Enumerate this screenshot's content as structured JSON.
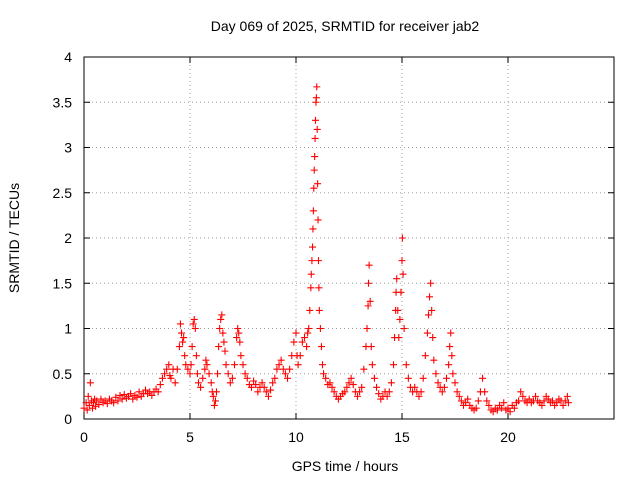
{
  "chart_data": {
    "type": "scatter",
    "title": "Day 069 of 2025, SRMTID for receiver jab2",
    "xlabel": "GPS time / hours",
    "ylabel": "SRMTID / TECUs",
    "xlim": [
      0,
      25
    ],
    "ylim": [
      0,
      4
    ],
    "xticks": [
      0,
      5,
      10,
      15,
      20
    ],
    "yticks": [
      0,
      0.5,
      1,
      1.5,
      2,
      2.5,
      3,
      3.5,
      4
    ],
    "xtick_labels": [
      "0",
      "5",
      "10",
      "15",
      "20"
    ],
    "ytick_labels": [
      "0",
      "0.5",
      "1",
      "1.5",
      "2",
      "2.5",
      "3",
      "3.5",
      "4"
    ],
    "grid": true,
    "marker": "+",
    "color": "#ff0000",
    "series": [
      {
        "name": "SRMTID",
        "points": [
          [
            0.0,
            0.12
          ],
          [
            0.1,
            0.18
          ],
          [
            0.15,
            0.1
          ],
          [
            0.2,
            0.25
          ],
          [
            0.25,
            0.15
          ],
          [
            0.3,
            0.4
          ],
          [
            0.35,
            0.2
          ],
          [
            0.4,
            0.12
          ],
          [
            0.45,
            0.18
          ],
          [
            0.5,
            0.22
          ],
          [
            0.55,
            0.14
          ],
          [
            0.6,
            0.2
          ],
          [
            0.7,
            0.16
          ],
          [
            0.8,
            0.22
          ],
          [
            0.9,
            0.18
          ],
          [
            1.0,
            0.2
          ],
          [
            1.1,
            0.17
          ],
          [
            1.2,
            0.22
          ],
          [
            1.3,
            0.2
          ],
          [
            1.4,
            0.18
          ],
          [
            1.5,
            0.24
          ],
          [
            1.6,
            0.2
          ],
          [
            1.7,
            0.26
          ],
          [
            1.8,
            0.22
          ],
          [
            1.9,
            0.27
          ],
          [
            2.0,
            0.23
          ],
          [
            2.1,
            0.25
          ],
          [
            2.2,
            0.28
          ],
          [
            2.3,
            0.22
          ],
          [
            2.4,
            0.26
          ],
          [
            2.5,
            0.24
          ],
          [
            2.6,
            0.3
          ],
          [
            2.7,
            0.25
          ],
          [
            2.8,
            0.28
          ],
          [
            2.9,
            0.32
          ],
          [
            3.0,
            0.28
          ],
          [
            3.1,
            0.3
          ],
          [
            3.2,
            0.26
          ],
          [
            3.3,
            0.3
          ],
          [
            3.4,
            0.33
          ],
          [
            3.5,
            0.3
          ],
          [
            3.6,
            0.38
          ],
          [
            3.7,
            0.45
          ],
          [
            3.8,
            0.5
          ],
          [
            3.9,
            0.55
          ],
          [
            4.0,
            0.6
          ],
          [
            4.05,
            0.48
          ],
          [
            4.1,
            0.45
          ],
          [
            4.2,
            0.55
          ],
          [
            4.3,
            0.4
          ],
          [
            4.4,
            0.55
          ],
          [
            4.5,
            0.8
          ],
          [
            4.55,
            1.05
          ],
          [
            4.6,
            0.95
          ],
          [
            4.65,
            0.85
          ],
          [
            4.7,
            0.9
          ],
          [
            4.75,
            0.7
          ],
          [
            4.8,
            0.6
          ],
          [
            4.9,
            0.55
          ],
          [
            5.0,
            0.5
          ],
          [
            5.05,
            0.6
          ],
          [
            5.1,
            0.8
          ],
          [
            5.15,
            1.05
          ],
          [
            5.2,
            1.1
          ],
          [
            5.25,
            1.0
          ],
          [
            5.3,
            0.7
          ],
          [
            5.35,
            0.5
          ],
          [
            5.4,
            0.4
          ],
          [
            5.5,
            0.35
          ],
          [
            5.6,
            0.45
          ],
          [
            5.7,
            0.55
          ],
          [
            5.75,
            0.65
          ],
          [
            5.8,
            0.6
          ],
          [
            5.9,
            0.5
          ],
          [
            6.0,
            0.4
          ],
          [
            6.05,
            0.3
          ],
          [
            6.1,
            0.25
          ],
          [
            6.15,
            0.15
          ],
          [
            6.2,
            0.2
          ],
          [
            6.25,
            0.3
          ],
          [
            6.3,
            0.5
          ],
          [
            6.35,
            0.8
          ],
          [
            6.4,
            1.0
          ],
          [
            6.45,
            1.1
          ],
          [
            6.5,
            1.15
          ],
          [
            6.55,
            0.95
          ],
          [
            6.6,
            0.85
          ],
          [
            6.65,
            0.75
          ],
          [
            6.7,
            0.6
          ],
          [
            6.8,
            0.5
          ],
          [
            6.9,
            0.4
          ],
          [
            7.0,
            0.45
          ],
          [
            7.1,
            0.6
          ],
          [
            7.2,
            0.9
          ],
          [
            7.25,
            1.0
          ],
          [
            7.3,
            0.95
          ],
          [
            7.35,
            0.85
          ],
          [
            7.4,
            0.7
          ],
          [
            7.5,
            0.6
          ],
          [
            7.6,
            0.5
          ],
          [
            7.7,
            0.45
          ],
          [
            7.8,
            0.38
          ],
          [
            7.9,
            0.35
          ],
          [
            8.0,
            0.42
          ],
          [
            8.1,
            0.38
          ],
          [
            8.2,
            0.3
          ],
          [
            8.3,
            0.35
          ],
          [
            8.4,
            0.4
          ],
          [
            8.5,
            0.35
          ],
          [
            8.6,
            0.3
          ],
          [
            8.7,
            0.25
          ],
          [
            8.8,
            0.32
          ],
          [
            8.9,
            0.4
          ],
          [
            9.0,
            0.45
          ],
          [
            9.1,
            0.55
          ],
          [
            9.2,
            0.6
          ],
          [
            9.3,
            0.65
          ],
          [
            9.4,
            0.55
          ],
          [
            9.5,
            0.5
          ],
          [
            9.6,
            0.45
          ],
          [
            9.7,
            0.55
          ],
          [
            9.8,
            0.7
          ],
          [
            9.9,
            0.85
          ],
          [
            10.0,
            0.95
          ],
          [
            10.05,
            0.7
          ],
          [
            10.1,
            0.6
          ],
          [
            10.2,
            0.7
          ],
          [
            10.3,
            0.85
          ],
          [
            10.4,
            0.9
          ],
          [
            10.5,
            0.8
          ],
          [
            10.55,
            0.95
          ],
          [
            10.6,
            1.0
          ],
          [
            10.65,
            1.2
          ],
          [
            10.7,
            1.45
          ],
          [
            10.72,
            1.6
          ],
          [
            10.75,
            1.75
          ],
          [
            10.78,
            1.9
          ],
          [
            10.8,
            2.1
          ],
          [
            10.82,
            2.3
          ],
          [
            10.84,
            2.55
          ],
          [
            10.86,
            2.75
          ],
          [
            10.88,
            2.9
          ],
          [
            10.9,
            3.1
          ],
          [
            10.92,
            3.3
          ],
          [
            10.94,
            3.5
          ],
          [
            10.96,
            3.55
          ],
          [
            10.98,
            3.67
          ],
          [
            11.0,
            3.2
          ],
          [
            11.02,
            2.6
          ],
          [
            11.04,
            2.2
          ],
          [
            11.06,
            1.75
          ],
          [
            11.08,
            1.45
          ],
          [
            11.1,
            1.2
          ],
          [
            11.15,
            1.0
          ],
          [
            11.2,
            0.8
          ],
          [
            11.25,
            0.6
          ],
          [
            11.3,
            0.5
          ],
          [
            11.4,
            0.45
          ],
          [
            11.5,
            0.38
          ],
          [
            11.6,
            0.4
          ],
          [
            11.7,
            0.35
          ],
          [
            11.8,
            0.3
          ],
          [
            11.9,
            0.25
          ],
          [
            12.0,
            0.22
          ],
          [
            12.1,
            0.25
          ],
          [
            12.2,
            0.28
          ],
          [
            12.3,
            0.3
          ],
          [
            12.4,
            0.35
          ],
          [
            12.5,
            0.4
          ],
          [
            12.6,
            0.45
          ],
          [
            12.7,
            0.38
          ],
          [
            12.8,
            0.3
          ],
          [
            12.9,
            0.25
          ],
          [
            13.0,
            0.3
          ],
          [
            13.1,
            0.35
          ],
          [
            13.2,
            0.55
          ],
          [
            13.3,
            0.8
          ],
          [
            13.35,
            1.0
          ],
          [
            13.4,
            1.25
          ],
          [
            13.42,
            1.5
          ],
          [
            13.45,
            1.7
          ],
          [
            13.5,
            1.3
          ],
          [
            13.55,
            0.8
          ],
          [
            13.6,
            0.6
          ],
          [
            13.7,
            0.45
          ],
          [
            13.8,
            0.35
          ],
          [
            13.9,
            0.28
          ],
          [
            14.0,
            0.22
          ],
          [
            14.1,
            0.25
          ],
          [
            14.2,
            0.3
          ],
          [
            14.3,
            0.25
          ],
          [
            14.4,
            0.3
          ],
          [
            14.5,
            0.4
          ],
          [
            14.6,
            0.6
          ],
          [
            14.65,
            0.9
          ],
          [
            14.7,
            1.2
          ],
          [
            14.72,
            1.4
          ],
          [
            14.75,
            1.55
          ],
          [
            14.8,
            1.2
          ],
          [
            14.85,
            0.9
          ],
          [
            14.9,
            1.1
          ],
          [
            14.95,
            1.4
          ],
          [
            15.0,
            1.75
          ],
          [
            15.02,
            2.0
          ],
          [
            15.05,
            1.6
          ],
          [
            15.1,
            1.0
          ],
          [
            15.2,
            0.6
          ],
          [
            15.3,
            0.45
          ],
          [
            15.4,
            0.35
          ],
          [
            15.5,
            0.3
          ],
          [
            15.6,
            0.35
          ],
          [
            15.7,
            0.3
          ],
          [
            15.8,
            0.25
          ],
          [
            15.9,
            0.3
          ],
          [
            16.0,
            0.45
          ],
          [
            16.1,
            0.7
          ],
          [
            16.2,
            0.95
          ],
          [
            16.25,
            1.15
          ],
          [
            16.3,
            1.35
          ],
          [
            16.35,
            1.5
          ],
          [
            16.4,
            1.2
          ],
          [
            16.45,
            0.9
          ],
          [
            16.5,
            0.65
          ],
          [
            16.6,
            0.5
          ],
          [
            16.7,
            0.4
          ],
          [
            16.8,
            0.35
          ],
          [
            16.9,
            0.3
          ],
          [
            17.0,
            0.35
          ],
          [
            17.1,
            0.45
          ],
          [
            17.2,
            0.6
          ],
          [
            17.25,
            0.8
          ],
          [
            17.3,
            0.95
          ],
          [
            17.35,
            0.7
          ],
          [
            17.4,
            0.5
          ],
          [
            17.5,
            0.4
          ],
          [
            17.6,
            0.3
          ],
          [
            17.7,
            0.25
          ],
          [
            17.8,
            0.2
          ],
          [
            17.9,
            0.15
          ],
          [
            18.0,
            0.18
          ],
          [
            18.1,
            0.22
          ],
          [
            18.2,
            0.15
          ],
          [
            18.3,
            0.12
          ],
          [
            18.4,
            0.1
          ],
          [
            18.5,
            0.12
          ],
          [
            18.6,
            0.2
          ],
          [
            18.7,
            0.3
          ],
          [
            18.8,
            0.45
          ],
          [
            18.9,
            0.3
          ],
          [
            19.0,
            0.2
          ],
          [
            19.1,
            0.15
          ],
          [
            19.2,
            0.1
          ],
          [
            19.3,
            0.08
          ],
          [
            19.4,
            0.12
          ],
          [
            19.5,
            0.1
          ],
          [
            19.6,
            0.15
          ],
          [
            19.7,
            0.12
          ],
          [
            19.8,
            0.18
          ],
          [
            19.9,
            0.1
          ],
          [
            20.0,
            0.12
          ],
          [
            20.1,
            0.08
          ],
          [
            20.2,
            0.15
          ],
          [
            20.3,
            0.12
          ],
          [
            20.4,
            0.18
          ],
          [
            20.5,
            0.2
          ],
          [
            20.6,
            0.3
          ],
          [
            20.7,
            0.25
          ],
          [
            20.8,
            0.2
          ],
          [
            20.9,
            0.18
          ],
          [
            21.0,
            0.22
          ],
          [
            21.1,
            0.18
          ],
          [
            21.2,
            0.2
          ],
          [
            21.3,
            0.25
          ],
          [
            21.4,
            0.2
          ],
          [
            21.5,
            0.18
          ],
          [
            21.6,
            0.15
          ],
          [
            21.7,
            0.2
          ],
          [
            21.8,
            0.25
          ],
          [
            21.9,
            0.22
          ],
          [
            22.0,
            0.18
          ],
          [
            22.1,
            0.2
          ],
          [
            22.2,
            0.15
          ],
          [
            22.3,
            0.18
          ],
          [
            22.4,
            0.22
          ],
          [
            22.5,
            0.2
          ],
          [
            22.6,
            0.15
          ],
          [
            22.7,
            0.2
          ],
          [
            22.8,
            0.25
          ],
          [
            22.85,
            0.18
          ]
        ]
      }
    ]
  }
}
